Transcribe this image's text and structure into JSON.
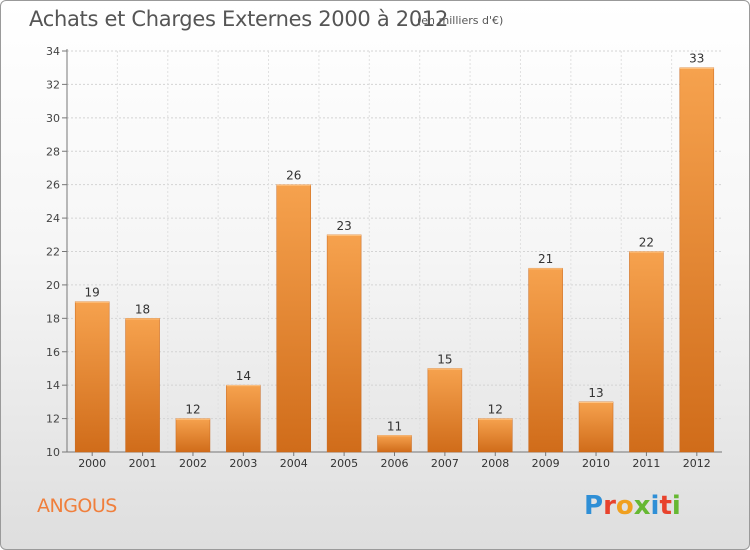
{
  "header": {
    "title": "Achats et Charges Externes 2000 à 2012",
    "subtitle": "(en milliers d'€)"
  },
  "footer": {
    "commune": "ANGOUS",
    "brand": "Proxiti"
  },
  "colors": {
    "bar_top": "#f6a24e",
    "bar_bottom": "#d06c1a",
    "bar_stroke": "#c8661a",
    "commune_text": "#f07f3c",
    "logo_letters": [
      "#2f8fd6",
      "#e8432d",
      "#f0a020",
      "#66b832",
      "#2f8fd6",
      "#e8432d",
      "#66b832"
    ]
  },
  "chart_data": {
    "type": "bar",
    "title": "Achats et Charges Externes 2000 à 2012",
    "subtitle": "(en milliers d'€)",
    "categories": [
      "2000",
      "2001",
      "2002",
      "2003",
      "2004",
      "2005",
      "2006",
      "2007",
      "2008",
      "2009",
      "2010",
      "2011",
      "2012"
    ],
    "values": [
      19,
      18,
      12,
      14,
      26,
      23,
      11,
      15,
      12,
      21,
      13,
      22,
      33
    ],
    "ylim": [
      10,
      34
    ],
    "yticks": [
      10,
      12,
      14,
      16,
      18,
      20,
      22,
      24,
      26,
      28,
      30,
      32,
      34
    ],
    "grid": true,
    "xlabel": "",
    "ylabel": ""
  }
}
